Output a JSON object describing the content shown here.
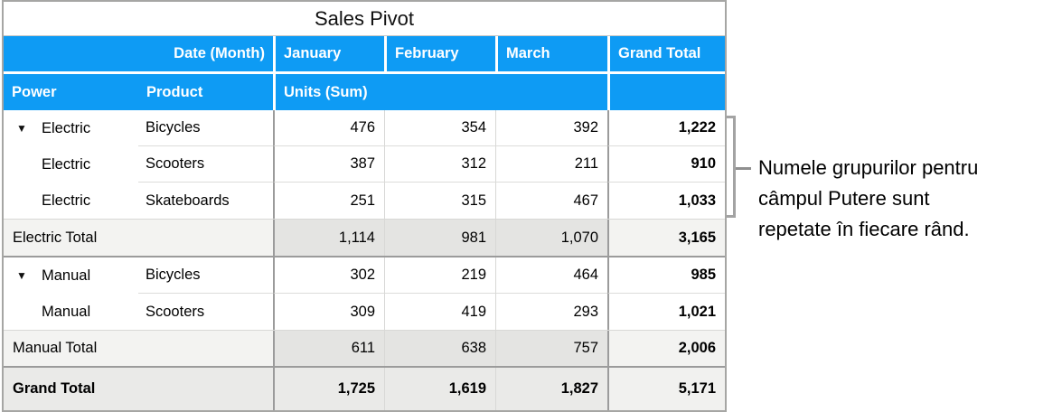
{
  "title": "Sales Pivot",
  "header": {
    "row1": {
      "date_field": "Date (Month)",
      "months": [
        "January",
        "February",
        "March"
      ],
      "grand_total": "Grand Total"
    },
    "row2": {
      "power": "Power",
      "product": "Product",
      "values_field": "Units (Sum)"
    }
  },
  "rows": [
    {
      "type": "data",
      "group": "Electric",
      "triangle": true,
      "product": "Bicycles",
      "values": [
        "476",
        "354",
        "392"
      ],
      "total": "1,222"
    },
    {
      "type": "data",
      "group": "Electric",
      "triangle": false,
      "product": "Scooters",
      "values": [
        "387",
        "312",
        "211"
      ],
      "total": "910"
    },
    {
      "type": "data",
      "group": "Electric",
      "triangle": false,
      "product": "Skateboards",
      "values": [
        "251",
        "315",
        "467"
      ],
      "total": "1,033",
      "last_in_group": true
    },
    {
      "type": "subtotal",
      "label": "Electric Total",
      "values": [
        "1,114",
        "981",
        "1,070"
      ],
      "total": "3,165"
    },
    {
      "type": "data",
      "group": "Manual",
      "triangle": true,
      "product": "Bicycles",
      "values": [
        "302",
        "219",
        "464"
      ],
      "total": "985"
    },
    {
      "type": "data",
      "group": "Manual",
      "triangle": false,
      "product": "Scooters",
      "values": [
        "309",
        "419",
        "293"
      ],
      "total": "1,021",
      "last_in_group": true
    },
    {
      "type": "subtotal",
      "label": "Manual Total",
      "values": [
        "611",
        "638",
        "757"
      ],
      "total": "2,006"
    },
    {
      "type": "grand",
      "label": "Grand Total",
      "values": [
        "1,725",
        "1,619",
        "1,827"
      ],
      "total": "5,171"
    }
  ],
  "icons": {
    "disclosure": "▼"
  },
  "annotation": {
    "lines": [
      "Numele grupurilor pentru",
      "câmpul Putere sunt",
      "repetate în fiecare rând."
    ],
    "text": "Numele grupurilor pentru câmpul Putere sunt repetate în fiecare rând."
  },
  "colors": {
    "header_blue": "#0e9bf4",
    "header_text": "#ffffff",
    "subtotal_label_bg": "#f3f3f1",
    "subtotal_value_bg": "#e4e4e2",
    "grand_row_bg": "#eaeae8",
    "section_line": "#9b9b9b",
    "outer_border": "#a6a6a4",
    "bracket_gray": "#a3a3a3"
  }
}
